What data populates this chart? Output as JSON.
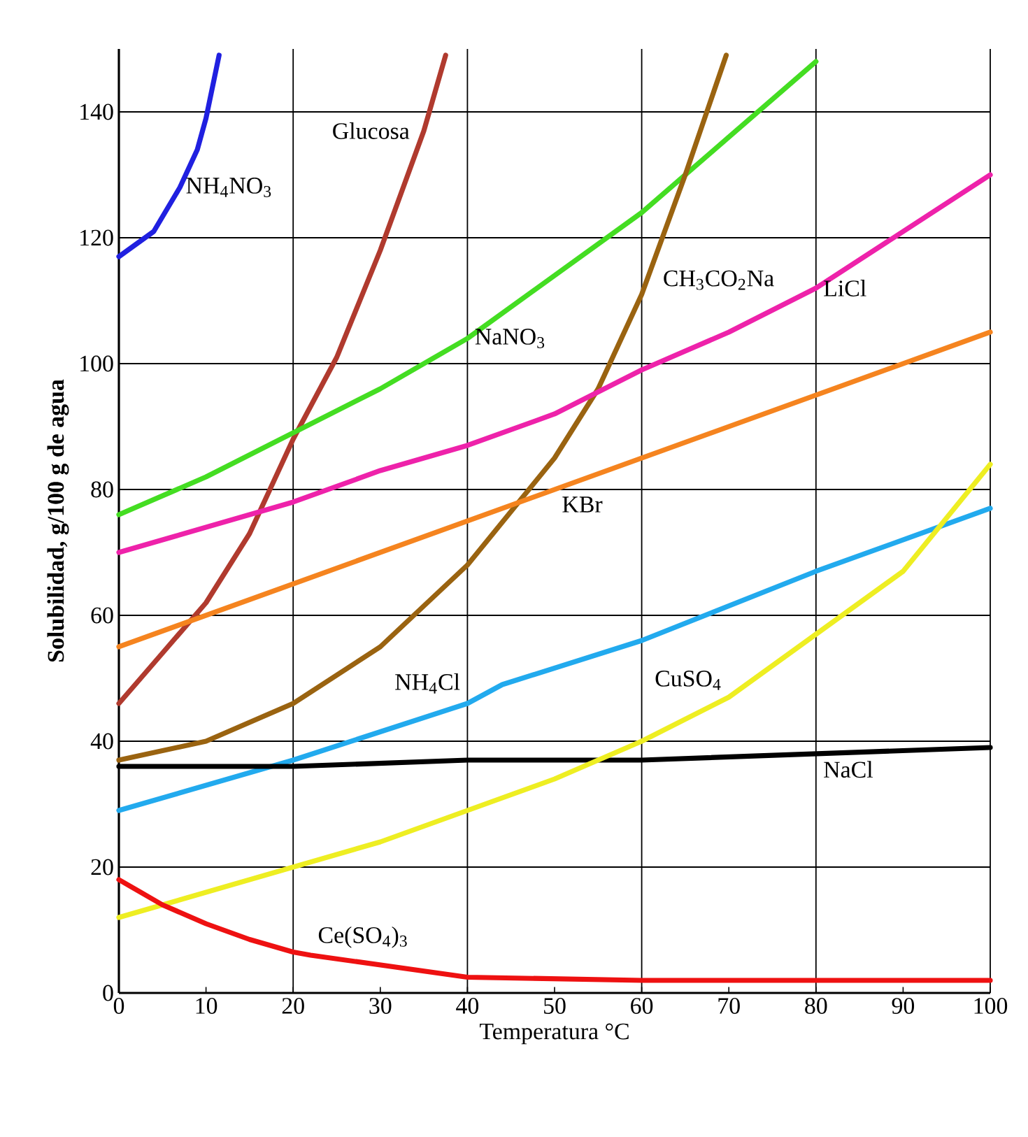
{
  "chart_data": {
    "type": "line",
    "xlabel": "Temperatura °C",
    "ylabel": "Solubilidad, g/100 g de agua",
    "xlim": [
      0,
      100
    ],
    "ylim": [
      0,
      150
    ],
    "xticks": [
      0,
      10,
      20,
      30,
      40,
      50,
      60,
      70,
      80,
      90,
      100
    ],
    "yticks": [
      0,
      20,
      40,
      60,
      80,
      100,
      120,
      140
    ],
    "grid": true,
    "series": [
      {
        "name": "NH$_{4}$NO$_{3}$",
        "color": "#2020e0",
        "x": [
          0,
          4,
          7,
          9,
          10,
          11.5
        ],
        "values": [
          117,
          121,
          128,
          134,
          139,
          149
        ]
      },
      {
        "name": "Glucosa",
        "color": "#b03a2e",
        "x": [
          0,
          5,
          10,
          15,
          20,
          25,
          30,
          35,
          37.5
        ],
        "values": [
          46,
          54,
          62,
          73,
          88,
          101,
          118,
          137,
          149
        ]
      },
      {
        "name": "NaNO$_{3}$",
        "color": "#44dd22",
        "x": [
          0,
          10,
          20,
          30,
          40,
          50,
          60,
          70,
          80
        ],
        "values": [
          76,
          82,
          89,
          96,
          104,
          114,
          124,
          136,
          148
        ]
      },
      {
        "name": "CH$_{3}$CO$_{2}$Na",
        "color": "#9a6310",
        "x": [
          0,
          10,
          20,
          30,
          40,
          50,
          55,
          60,
          65,
          69.7
        ],
        "values": [
          37,
          40,
          46,
          55,
          68,
          85,
          96,
          111,
          130,
          149
        ]
      },
      {
        "name": "LiCl",
        "color": "#ee22aa",
        "x": [
          0,
          10,
          20,
          30,
          40,
          50,
          60,
          70,
          80,
          90,
          100
        ],
        "values": [
          70,
          74,
          78,
          83,
          87,
          92,
          99,
          105,
          112,
          121,
          130
        ]
      },
      {
        "name": "KBr",
        "color": "#f5841f",
        "x": [
          0,
          10,
          20,
          30,
          40,
          50,
          60,
          70,
          80,
          90,
          100
        ],
        "values": [
          55,
          60,
          65,
          70,
          75,
          80,
          85,
          90,
          95,
          100,
          105
        ]
      },
      {
        "name": "NH$_{4}$Cl",
        "color": "#22aaee",
        "x": [
          0,
          20,
          40,
          44,
          60,
          80,
          100
        ],
        "values": [
          29,
          37,
          46,
          49,
          56,
          67,
          77
        ]
      },
      {
        "name": "NaCl",
        "color": "#000000",
        "x": [
          0,
          20,
          40,
          60,
          80,
          100
        ],
        "values": [
          36,
          36,
          37,
          37,
          38,
          39
        ]
      },
      {
        "name": "CuSO$_{4}$",
        "color": "#eeee22",
        "x": [
          0,
          10,
          20,
          30,
          40,
          50,
          60,
          70,
          80,
          90,
          100
        ],
        "values": [
          12,
          16,
          20,
          24,
          29,
          34,
          40,
          47,
          57,
          67,
          84
        ]
      },
      {
        "name": "Ce(SO$_{4}$)$_{3}$",
        "color": "#ee1111",
        "x": [
          0,
          5,
          10,
          15,
          20,
          22,
          40,
          60,
          80,
          100
        ],
        "values": [
          18,
          14,
          11,
          8.5,
          6.5,
          6,
          2.5,
          2,
          2,
          2
        ]
      }
    ]
  }
}
